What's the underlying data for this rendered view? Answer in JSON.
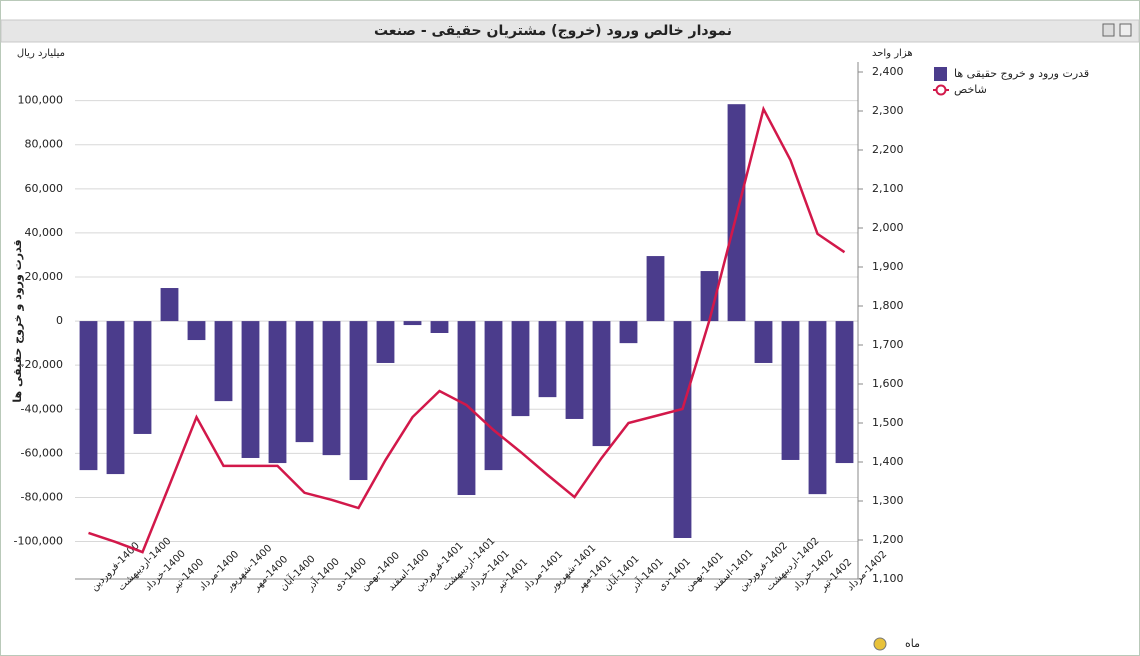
{
  "chart_data": {
    "type": "bar-line",
    "title": "نمودار خالص ورود (خروج) مشتریان حقیقی - صنعت",
    "y_unit": "میلیارد ریال",
    "y2_unit": "هزار واحد",
    "ylabel": "قدرت ورود و خروج حقیقی ها",
    "xlabel": "ماه",
    "categories": [
      "1400-فروردین",
      "1400-اردیبهشت",
      "1400-خرداد",
      "1400-تیر",
      "1400-مرداد",
      "1400-شهریور",
      "1400-مهر",
      "1400-آبان",
      "1400-آذر",
      "1400-دی",
      "1400-بهمن",
      "1400-اسفند",
      "1401-فروردین",
      "1401-اردیبهشت",
      "1401-خرداد",
      "1401-تیر",
      "1401-مرداد",
      "1401-شهریور",
      "1401-مهر",
      "1401-آبان",
      "1401-آذر",
      "1401-دی",
      "1401-بهمن",
      "1401-اسفند",
      "1402-فروردین",
      "1402-اردیبهشت",
      "1402-خرداد",
      "1402-تیر",
      "1402-مرداد"
    ],
    "series": [
      {
        "name": "قدرت ورود و خروج حقیقی ها",
        "type": "bar",
        "color": "#4b3c8c",
        "values": [
          -67600,
          -69400,
          -51200,
          15000,
          -8600,
          -36300,
          -62100,
          -64400,
          -54900,
          -60800,
          -72100,
          -19000,
          -1800,
          -5400,
          -78900,
          -67600,
          -43100,
          -34500,
          -44400,
          -56700,
          -10000,
          29500,
          -98400,
          22700,
          98400,
          -19000,
          -63000,
          -78500,
          -64400
        ]
      },
      {
        "name": "شاخص",
        "type": "line",
        "axis": "y2",
        "color": "#d2184a",
        "values": [
          1218,
          1195,
          1169,
          1341,
          1515,
          1390,
          1390,
          1390,
          1321,
          1303,
          1282,
          1405,
          1515,
          1582,
          1546,
          1482,
          1426,
          1367,
          1310,
          1410,
          1500,
          1518,
          1536,
          1764,
          2033,
          2305,
          2174,
          1985,
          1938
        ]
      }
    ],
    "ylim": [
      -117000,
      113000
    ],
    "yticks": [
      {
        "value": -100000,
        "label": "-100,000"
      },
      {
        "value": -80000,
        "label": "-80,000"
      },
      {
        "value": -60000,
        "label": "-60,000"
      },
      {
        "value": -40000,
        "label": "-40,000"
      },
      {
        "value": -20000,
        "label": "-20,000"
      },
      0,
      {
        "value": 20000,
        "label": "20,000"
      },
      {
        "value": 40000,
        "label": "40,000"
      },
      {
        "value": 60000,
        "label": "60,000"
      },
      {
        "value": 80000,
        "label": "80,000"
      },
      {
        "value": 100000,
        "label": "100,000"
      }
    ],
    "y2lim": [
      1100,
      2400
    ],
    "y2ticks": [
      {
        "value": 1100,
        "label": "1,100"
      },
      {
        "value": 1200,
        "label": "1,200"
      },
      {
        "value": 1300,
        "label": "1,300"
      },
      {
        "value": 1400,
        "label": "1,400"
      },
      {
        "value": 1500,
        "label": "1,500"
      },
      {
        "value": 1600,
        "label": "1,600"
      },
      {
        "value": 1700,
        "label": "1,700"
      },
      {
        "value": 1800,
        "label": "1,800"
      },
      {
        "value": 1900,
        "label": "1,900"
      },
      {
        "value": 2000,
        "label": "2,000"
      },
      {
        "value": 2100,
        "label": "2,100"
      },
      {
        "value": 2200,
        "label": "2,200"
      },
      {
        "value": 2300,
        "label": "2,300"
      },
      {
        "value": 2400,
        "label": "2,400"
      }
    ],
    "grid": true,
    "legend": "top-right"
  }
}
